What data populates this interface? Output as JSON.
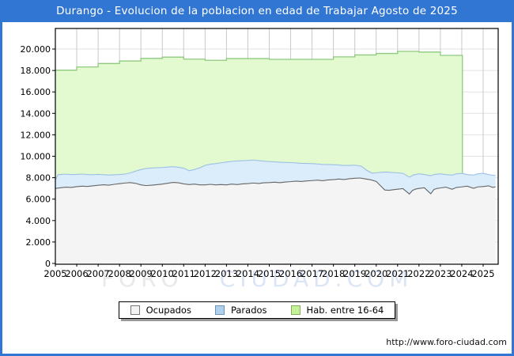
{
  "window": {
    "title": "Durango - Evolucion de la poblacion en edad de Trabajar Agosto de 2025"
  },
  "watermark": {
    "left": "FORO",
    "right": "CIUDAD.COM"
  },
  "footer": {
    "url": "http://www.foro-ciudad.com"
  },
  "legend": {
    "items": [
      {
        "label": "Ocupados",
        "fill": "#f2f2f2",
        "border": "#777777"
      },
      {
        "label": "Parados",
        "fill": "#aed2ee",
        "border": "#7291b5"
      },
      {
        "label": "Hab. entre 16-64",
        "fill": "#c6ef9a",
        "border": "#85b05b"
      }
    ]
  },
  "chart_data": {
    "type": "area",
    "title": "Durango - Evolucion de la poblacion en edad de Trabajar Agosto de 2025",
    "xlabel": "",
    "ylabel": "",
    "x_range": [
      2005,
      2025.67
    ],
    "ylim": [
      0,
      21900
    ],
    "grid": {
      "v_color": "#c9c9cd",
      "h_color": "#e2e2e4",
      "plot_bg": "#ffffff",
      "border": "#000000"
    },
    "yticks": [
      {
        "v": 0,
        "label": "0"
      },
      {
        "v": 2000,
        "label": "2.000"
      },
      {
        "v": 4000,
        "label": "4.000"
      },
      {
        "v": 6000,
        "label": "6.000"
      },
      {
        "v": 8000,
        "label": "8.000"
      },
      {
        "v": 10000,
        "label": "10.000"
      },
      {
        "v": 12000,
        "label": "12.000"
      },
      {
        "v": 14000,
        "label": "14.000"
      },
      {
        "v": 16000,
        "label": "16.000"
      },
      {
        "v": 18000,
        "label": "18.000"
      },
      {
        "v": 20000,
        "label": "20.000"
      }
    ],
    "xticks": [
      "2005",
      "2006",
      "2007",
      "2008",
      "2009",
      "2010",
      "2011",
      "2012",
      "2013",
      "2014",
      "2015",
      "2016",
      "2017",
      "2018",
      "2019",
      "2020",
      "2021",
      "2022",
      "2023",
      "2024",
      "2025"
    ],
    "series": [
      {
        "name": "Hab. entre 16-64",
        "style": "step",
        "fill": "#e3fad0",
        "stroke": "#8fc97f",
        "end_x": 2024.03,
        "points": [
          [
            2005,
            18030
          ],
          [
            2006,
            18330
          ],
          [
            2007,
            18650
          ],
          [
            2008,
            18890
          ],
          [
            2009,
            19130
          ],
          [
            2010,
            19250
          ],
          [
            2011,
            19060
          ],
          [
            2012,
            18950
          ],
          [
            2013,
            19110
          ],
          [
            2014,
            19110
          ],
          [
            2015,
            19040
          ],
          [
            2016,
            19040
          ],
          [
            2017,
            19040
          ],
          [
            2018,
            19270
          ],
          [
            2019,
            19450
          ],
          [
            2020,
            19590
          ],
          [
            2021,
            19790
          ],
          [
            2022,
            19720
          ],
          [
            2023,
            19410
          ]
        ]
      },
      {
        "name": "Parados",
        "note": "top edge of stacked band (Ocupados + Parados)",
        "style": "line",
        "fill": "#dbedfb",
        "stroke": "#9cc0e4",
        "points": [
          [
            2005.0,
            7750
          ],
          [
            2005.12,
            8280
          ],
          [
            2005.3,
            8310
          ],
          [
            2005.5,
            8330
          ],
          [
            2005.75,
            8290
          ],
          [
            2006.0,
            8310
          ],
          [
            2006.25,
            8340
          ],
          [
            2006.5,
            8300
          ],
          [
            2006.75,
            8280
          ],
          [
            2007.0,
            8310
          ],
          [
            2007.25,
            8280
          ],
          [
            2007.5,
            8240
          ],
          [
            2007.75,
            8270
          ],
          [
            2008.0,
            8300
          ],
          [
            2008.25,
            8340
          ],
          [
            2008.5,
            8440
          ],
          [
            2008.75,
            8610
          ],
          [
            2009.0,
            8760
          ],
          [
            2009.25,
            8860
          ],
          [
            2009.5,
            8910
          ],
          [
            2009.75,
            8930
          ],
          [
            2010.0,
            8950
          ],
          [
            2010.25,
            8990
          ],
          [
            2010.5,
            9030
          ],
          [
            2010.75,
            8970
          ],
          [
            2011.0,
            8890
          ],
          [
            2011.25,
            8650
          ],
          [
            2011.5,
            8760
          ],
          [
            2011.75,
            8920
          ],
          [
            2012.0,
            9150
          ],
          [
            2012.25,
            9260
          ],
          [
            2012.5,
            9310
          ],
          [
            2012.75,
            9390
          ],
          [
            2013.0,
            9460
          ],
          [
            2013.25,
            9520
          ],
          [
            2013.5,
            9560
          ],
          [
            2013.75,
            9590
          ],
          [
            2014.0,
            9610
          ],
          [
            2014.25,
            9650
          ],
          [
            2014.5,
            9590
          ],
          [
            2014.75,
            9540
          ],
          [
            2015.0,
            9510
          ],
          [
            2015.25,
            9480
          ],
          [
            2015.5,
            9440
          ],
          [
            2015.75,
            9420
          ],
          [
            2016.0,
            9410
          ],
          [
            2016.25,
            9380
          ],
          [
            2016.5,
            9340
          ],
          [
            2016.75,
            9330
          ],
          [
            2017.0,
            9310
          ],
          [
            2017.25,
            9280
          ],
          [
            2017.5,
            9240
          ],
          [
            2017.75,
            9230
          ],
          [
            2018.0,
            9210
          ],
          [
            2018.25,
            9180
          ],
          [
            2018.5,
            9140
          ],
          [
            2018.75,
            9150
          ],
          [
            2019.0,
            9170
          ],
          [
            2019.3,
            9080
          ],
          [
            2019.55,
            8700
          ],
          [
            2019.8,
            8420
          ],
          [
            2020.0,
            8460
          ],
          [
            2020.25,
            8510
          ],
          [
            2020.5,
            8530
          ],
          [
            2020.75,
            8480
          ],
          [
            2021.0,
            8460
          ],
          [
            2021.25,
            8400
          ],
          [
            2021.55,
            8050
          ],
          [
            2021.75,
            8260
          ],
          [
            2022.0,
            8360
          ],
          [
            2022.25,
            8300
          ],
          [
            2022.55,
            8190
          ],
          [
            2022.75,
            8310
          ],
          [
            2023.0,
            8360
          ],
          [
            2023.25,
            8290
          ],
          [
            2023.55,
            8240
          ],
          [
            2023.75,
            8360
          ],
          [
            2024.0,
            8410
          ],
          [
            2024.25,
            8290
          ],
          [
            2024.55,
            8240
          ],
          [
            2024.75,
            8360
          ],
          [
            2025.0,
            8410
          ],
          [
            2025.25,
            8290
          ],
          [
            2025.45,
            8230
          ],
          [
            2025.58,
            8200
          ]
        ]
      },
      {
        "name": "Ocupados",
        "style": "line",
        "fill": "#f4f4f4",
        "stroke": "#666666",
        "points": [
          [
            2005.0,
            7000
          ],
          [
            2005.25,
            7060
          ],
          [
            2005.5,
            7120
          ],
          [
            2005.75,
            7090
          ],
          [
            2006.0,
            7160
          ],
          [
            2006.25,
            7210
          ],
          [
            2006.5,
            7180
          ],
          [
            2006.75,
            7240
          ],
          [
            2007.0,
            7290
          ],
          [
            2007.25,
            7340
          ],
          [
            2007.5,
            7300
          ],
          [
            2007.75,
            7380
          ],
          [
            2008.0,
            7440
          ],
          [
            2008.25,
            7500
          ],
          [
            2008.5,
            7540
          ],
          [
            2008.75,
            7470
          ],
          [
            2009.0,
            7330
          ],
          [
            2009.25,
            7260
          ],
          [
            2009.5,
            7300
          ],
          [
            2009.75,
            7350
          ],
          [
            2010.0,
            7400
          ],
          [
            2010.25,
            7480
          ],
          [
            2010.5,
            7560
          ],
          [
            2010.75,
            7520
          ],
          [
            2011.0,
            7420
          ],
          [
            2011.25,
            7360
          ],
          [
            2011.5,
            7400
          ],
          [
            2011.75,
            7330
          ],
          [
            2012.0,
            7330
          ],
          [
            2012.25,
            7380
          ],
          [
            2012.5,
            7330
          ],
          [
            2012.75,
            7360
          ],
          [
            2013.0,
            7330
          ],
          [
            2013.25,
            7400
          ],
          [
            2013.5,
            7360
          ],
          [
            2013.75,
            7420
          ],
          [
            2014.0,
            7450
          ],
          [
            2014.25,
            7500
          ],
          [
            2014.5,
            7460
          ],
          [
            2014.75,
            7520
          ],
          [
            2015.0,
            7540
          ],
          [
            2015.25,
            7580
          ],
          [
            2015.5,
            7530
          ],
          [
            2015.75,
            7600
          ],
          [
            2016.0,
            7630
          ],
          [
            2016.25,
            7680
          ],
          [
            2016.5,
            7640
          ],
          [
            2016.75,
            7700
          ],
          [
            2017.0,
            7730
          ],
          [
            2017.25,
            7770
          ],
          [
            2017.5,
            7720
          ],
          [
            2017.75,
            7790
          ],
          [
            2018.0,
            7820
          ],
          [
            2018.25,
            7870
          ],
          [
            2018.5,
            7830
          ],
          [
            2018.75,
            7900
          ],
          [
            2019.0,
            7950
          ],
          [
            2019.25,
            7970
          ],
          [
            2019.5,
            7880
          ],
          [
            2019.75,
            7800
          ],
          [
            2020.0,
            7650
          ],
          [
            2020.2,
            7250
          ],
          [
            2020.4,
            6850
          ],
          [
            2020.6,
            6820
          ],
          [
            2020.8,
            6880
          ],
          [
            2021.0,
            6920
          ],
          [
            2021.25,
            6980
          ],
          [
            2021.55,
            6480
          ],
          [
            2021.7,
            6820
          ],
          [
            2021.85,
            6940
          ],
          [
            2022.0,
            7000
          ],
          [
            2022.25,
            7060
          ],
          [
            2022.55,
            6500
          ],
          [
            2022.7,
            6900
          ],
          [
            2022.85,
            7000
          ],
          [
            2023.0,
            7040
          ],
          [
            2023.25,
            7120
          ],
          [
            2023.55,
            6920
          ],
          [
            2023.75,
            7090
          ],
          [
            2024.0,
            7140
          ],
          [
            2024.25,
            7210
          ],
          [
            2024.55,
            7010
          ],
          [
            2024.75,
            7140
          ],
          [
            2025.0,
            7170
          ],
          [
            2025.25,
            7240
          ],
          [
            2025.45,
            7090
          ],
          [
            2025.58,
            7150
          ]
        ]
      }
    ],
    "legend_position": "bottom"
  }
}
